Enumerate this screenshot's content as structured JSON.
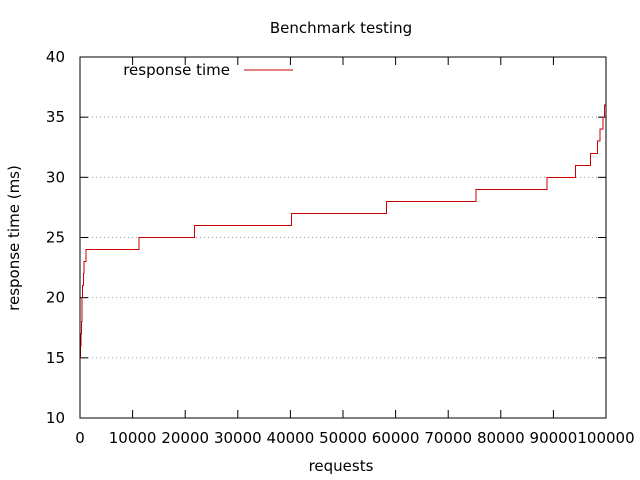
{
  "chart_data": {
    "type": "line",
    "title": "Benchmark testing",
    "xlabel": "requests",
    "ylabel": "response time (ms)",
    "xlim": [
      0,
      100000
    ],
    "ylim": [
      10,
      40
    ],
    "xticks": [
      0,
      10000,
      20000,
      30000,
      40000,
      50000,
      60000,
      70000,
      80000,
      90000,
      100000
    ],
    "yticks": [
      10,
      15,
      20,
      25,
      30,
      35,
      40
    ],
    "xtick_labels": [
      "0",
      "10000",
      "20000",
      "30000",
      "40000",
      "50000",
      "60000",
      "70000",
      "80000",
      "90000",
      "100000"
    ],
    "ytick_labels": [
      "10",
      "15",
      "20",
      "25",
      "30",
      "35",
      "40"
    ],
    "grid": "horizontal dotted",
    "legend_position": "top-left",
    "series": [
      {
        "name": "response time",
        "color": "#cc0000",
        "step": true,
        "points": [
          [
            0,
            15
          ],
          [
            80,
            16
          ],
          [
            150,
            17
          ],
          [
            250,
            18
          ],
          [
            350,
            20
          ],
          [
            500,
            21
          ],
          [
            650,
            22
          ],
          [
            800,
            23
          ],
          [
            1100,
            24
          ],
          [
            11200,
            25
          ],
          [
            21800,
            26
          ],
          [
            40200,
            27
          ],
          [
            58300,
            28
          ],
          [
            75300,
            29
          ],
          [
            88800,
            30
          ],
          [
            94200,
            31
          ],
          [
            97100,
            32
          ],
          [
            98400,
            33
          ],
          [
            98900,
            34
          ],
          [
            99400,
            35
          ],
          [
            99700,
            36
          ],
          [
            100000,
            36
          ]
        ]
      }
    ]
  }
}
